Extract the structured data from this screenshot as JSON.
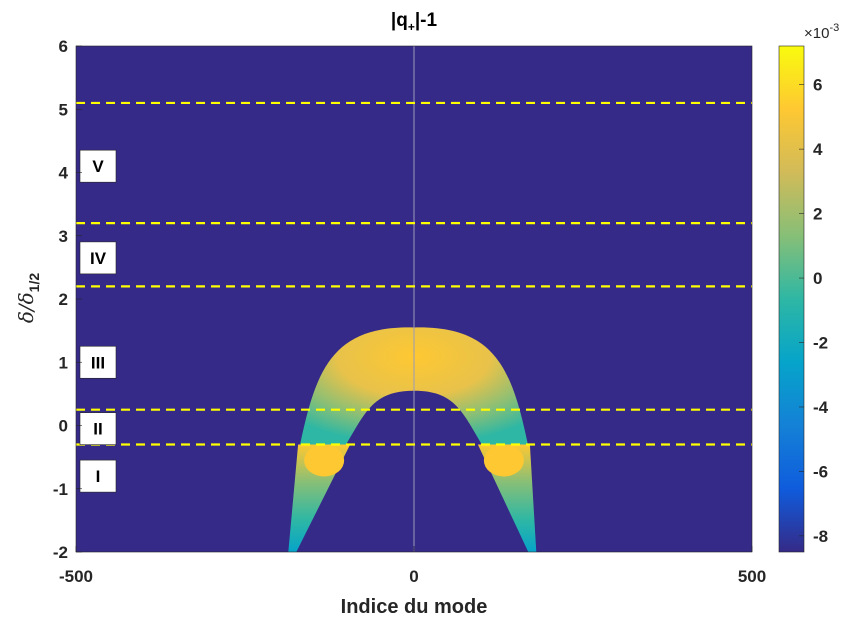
{
  "chart_data": {
    "type": "heatmap",
    "title": "|q₊|-1",
    "title_parts": {
      "main": "|q",
      "sub": "+",
      "tail": "|-1"
    },
    "xlabel": "Indice du mode",
    "ylabel_parts": {
      "a": "δ/δ",
      "sub": "1/2"
    },
    "xlim": [
      -500,
      500
    ],
    "ylim": [
      -2,
      6
    ],
    "x_ticks": [
      "-500",
      "0",
      "500"
    ],
    "y_ticks": [
      "-2",
      "-1",
      "0",
      "1",
      "2",
      "3",
      "4",
      "5",
      "6"
    ],
    "colorbar": {
      "min": -8.5,
      "max": 7.2,
      "ticks": [
        "-8",
        "-6",
        "-4",
        "-2",
        "0",
        "2",
        "4",
        "6"
      ],
      "exponent_base": "×10",
      "exponent_power": "-3",
      "colormap": "parula"
    },
    "background_value": -8.5,
    "boundaries": [
      -0.3,
      0.25,
      2.2,
      3.2,
      5.1
    ],
    "boundary_color": "#ffff00",
    "regions": [
      {
        "label": "I",
        "y": -0.8
      },
      {
        "label": "II",
        "y": -0.05
      },
      {
        "label": "III",
        "y": 1.0
      },
      {
        "label": "IV",
        "y": 2.65
      },
      {
        "label": "V",
        "y": 4.1
      }
    ],
    "unstable_band": {
      "description_values": {
        "arch_top_y": 1.55,
        "arch_inner_top_y": 0.55,
        "arch_half_width_at_y_minus_0_3": 130,
        "lower_branch_x_at_y_minus_2": [
          -180,
          175
        ]
      }
    },
    "grid": false,
    "vertical_line_at_x": 0
  }
}
